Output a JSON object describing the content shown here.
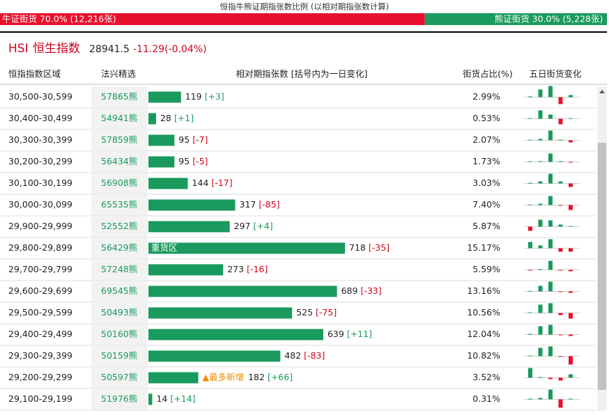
{
  "header": {
    "title": "恒指牛熊证期指张数比例 (以相对期指张数计算)",
    "bull": {
      "label": "牛证街货 70.0% (12,216张)",
      "pct": 70.0
    },
    "bear": {
      "label": "熊证街货 30.0% (5,228张)",
      "pct": 30.0
    }
  },
  "index": {
    "code": "HSI",
    "name": "恒生指数",
    "price": "28941.5",
    "change": "-11.29(-0.04%)"
  },
  "table": {
    "columns": [
      "恒指指数区域",
      "法兴精选",
      "相对期指张数 [括号内为一日变化]",
      "街货占比(%)",
      "五日街货变化"
    ],
    "rows": [
      {
        "range": "30,500-30,599",
        "code": "57865熊",
        "count": 119,
        "change": "[+3]",
        "share": "2.99%",
        "five_day": [
          1,
          11,
          16,
          -10,
          3
        ]
      },
      {
        "range": "30,400-30,499",
        "code": "54941熊",
        "count": 28,
        "change": "[+1]",
        "share": "0.53%",
        "five_day": [
          0,
          12,
          6,
          -8,
          0
        ]
      },
      {
        "range": "30,300-30,399",
        "code": "57859熊",
        "count": 95,
        "change": "[-7]",
        "share": "2.07%",
        "five_day": [
          0,
          2,
          14,
          1,
          -3
        ]
      },
      {
        "range": "30,200-30,299",
        "code": "56434熊",
        "count": 95,
        "change": "[-5]",
        "share": "1.73%",
        "five_day": [
          0,
          1,
          12,
          1,
          -1
        ]
      },
      {
        "range": "30,100-30,199",
        "code": "56908熊",
        "count": 144,
        "change": "[-17]",
        "share": "3.03%",
        "five_day": [
          1,
          3,
          14,
          3,
          -5
        ]
      },
      {
        "range": "30,000-30,099",
        "code": "65535熊",
        "count": 317,
        "change": "[-85]",
        "share": "7.40%",
        "five_day": [
          0,
          2,
          13,
          -1,
          -7
        ]
      },
      {
        "range": "29,900-29,999",
        "code": "52552熊",
        "count": 297,
        "change": "[+4]",
        "share": "5.87%",
        "five_day": [
          -6,
          10,
          9,
          3,
          0
        ]
      },
      {
        "range": "29,800-29,899",
        "code": "56429熊",
        "count": 718,
        "change": "[-35]",
        "share": "15.17%",
        "note": "重货区",
        "five_day": [
          9,
          4,
          13,
          -5,
          -5
        ]
      },
      {
        "range": "29,700-29,799",
        "code": "57248熊",
        "count": 273,
        "change": "[-16]",
        "share": "5.59%",
        "five_day": [
          -1,
          1,
          13,
          -1,
          -2
        ]
      },
      {
        "range": "29,600-29,699",
        "code": "69545熊",
        "count": 689,
        "change": "[-33]",
        "share": "13.16%",
        "five_day": [
          0,
          8,
          14,
          -1,
          -2
        ]
      },
      {
        "range": "29,500-29,599",
        "code": "50493熊",
        "count": 525,
        "change": "[-75]",
        "share": "10.56%",
        "five_day": [
          0,
          12,
          14,
          -3,
          -8
        ]
      },
      {
        "range": "29,400-29,499",
        "code": "50160熊",
        "count": 639,
        "change": "[+11]",
        "share": "12.04%",
        "five_day": [
          1,
          12,
          14,
          -1,
          -2
        ]
      },
      {
        "range": "29,300-29,399",
        "code": "50159熊",
        "count": 482,
        "change": "[-83]",
        "share": "10.82%",
        "five_day": [
          0,
          12,
          14,
          -1,
          -12
        ]
      },
      {
        "range": "29,200-29,299",
        "code": "50597熊",
        "count": 182,
        "change": "[+66]",
        "share": "3.52%",
        "note": "▲最多新增",
        "five_day": [
          14,
          1,
          -2,
          -4,
          5
        ]
      },
      {
        "range": "29,100-29,199",
        "code": "51976熊",
        "count": 14,
        "change": "[+14]",
        "share": "0.31%",
        "five_day": [
          1,
          2,
          14,
          -12,
          1
        ]
      }
    ]
  }
}
